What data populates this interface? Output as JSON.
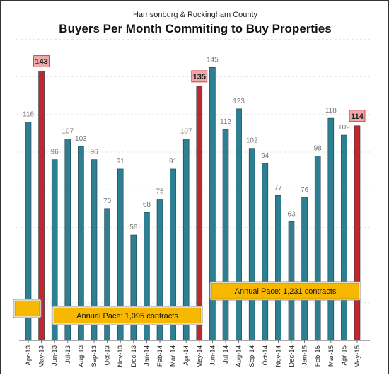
{
  "chart_data": {
    "type": "bar",
    "subtitle": "Harrisonburg & Rockingham County",
    "title": "Buyers Per Month Commiting to Buy Properties",
    "categories": [
      "Apr-13",
      "May-13",
      "Jun-13",
      "Jul-13",
      "Aug-13",
      "Sep-13",
      "Oct-13",
      "Nov-13",
      "Dec-13",
      "Jan-14",
      "Feb-14",
      "Mar-14",
      "Apr-14",
      "May-14",
      "Jun-14",
      "Jul-14",
      "Aug-14",
      "Sep-14",
      "Oct-14",
      "Nov-14",
      "Dec-14",
      "Jan-15",
      "Feb-15",
      "Mar-15",
      "Apr-15",
      "May-15"
    ],
    "values": [
      116,
      143,
      96,
      107,
      103,
      96,
      70,
      91,
      56,
      68,
      75,
      91,
      107,
      135,
      145,
      112,
      123,
      102,
      94,
      77,
      63,
      76,
      98,
      118,
      109,
      114
    ],
    "highlighted": [
      "May-13",
      "May-14",
      "May-15"
    ],
    "ylim": [
      0,
      160
    ],
    "grid": "horizontal dashed",
    "colors": {
      "bar": "#2f7f93",
      "highlight": "#c0282d",
      "label_box": "#f2a9a9",
      "pace_box": "#f6b800"
    },
    "annotations": [
      {
        "id": "pace_prev",
        "text": "",
        "anchor": "Apr-13"
      },
      {
        "id": "pace_1",
        "text": "Annual Pace: 1,095 contracts",
        "anchor": "Aug-13"
      },
      {
        "id": "pace_2",
        "text": "Annual Pace: 1,231 contracts",
        "anchor": "Jul-14"
      }
    ]
  }
}
